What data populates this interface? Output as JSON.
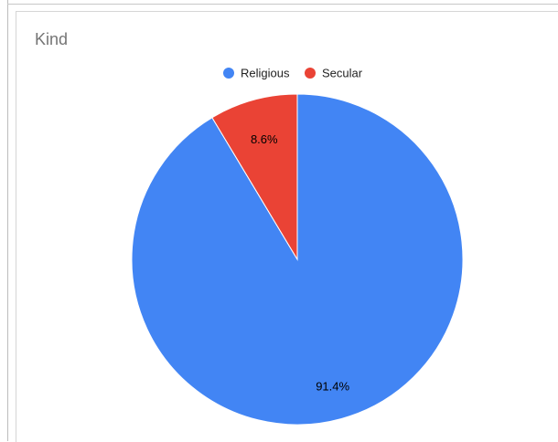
{
  "chart_data": {
    "type": "pie",
    "title": "Kind",
    "categories": [
      "Religious",
      "Secular"
    ],
    "values": [
      91.4,
      8.6
    ],
    "data_labels": [
      "91.4%",
      "8.6%"
    ],
    "colors": [
      "#4285f4",
      "#ea4335"
    ],
    "legend_position": "top"
  }
}
